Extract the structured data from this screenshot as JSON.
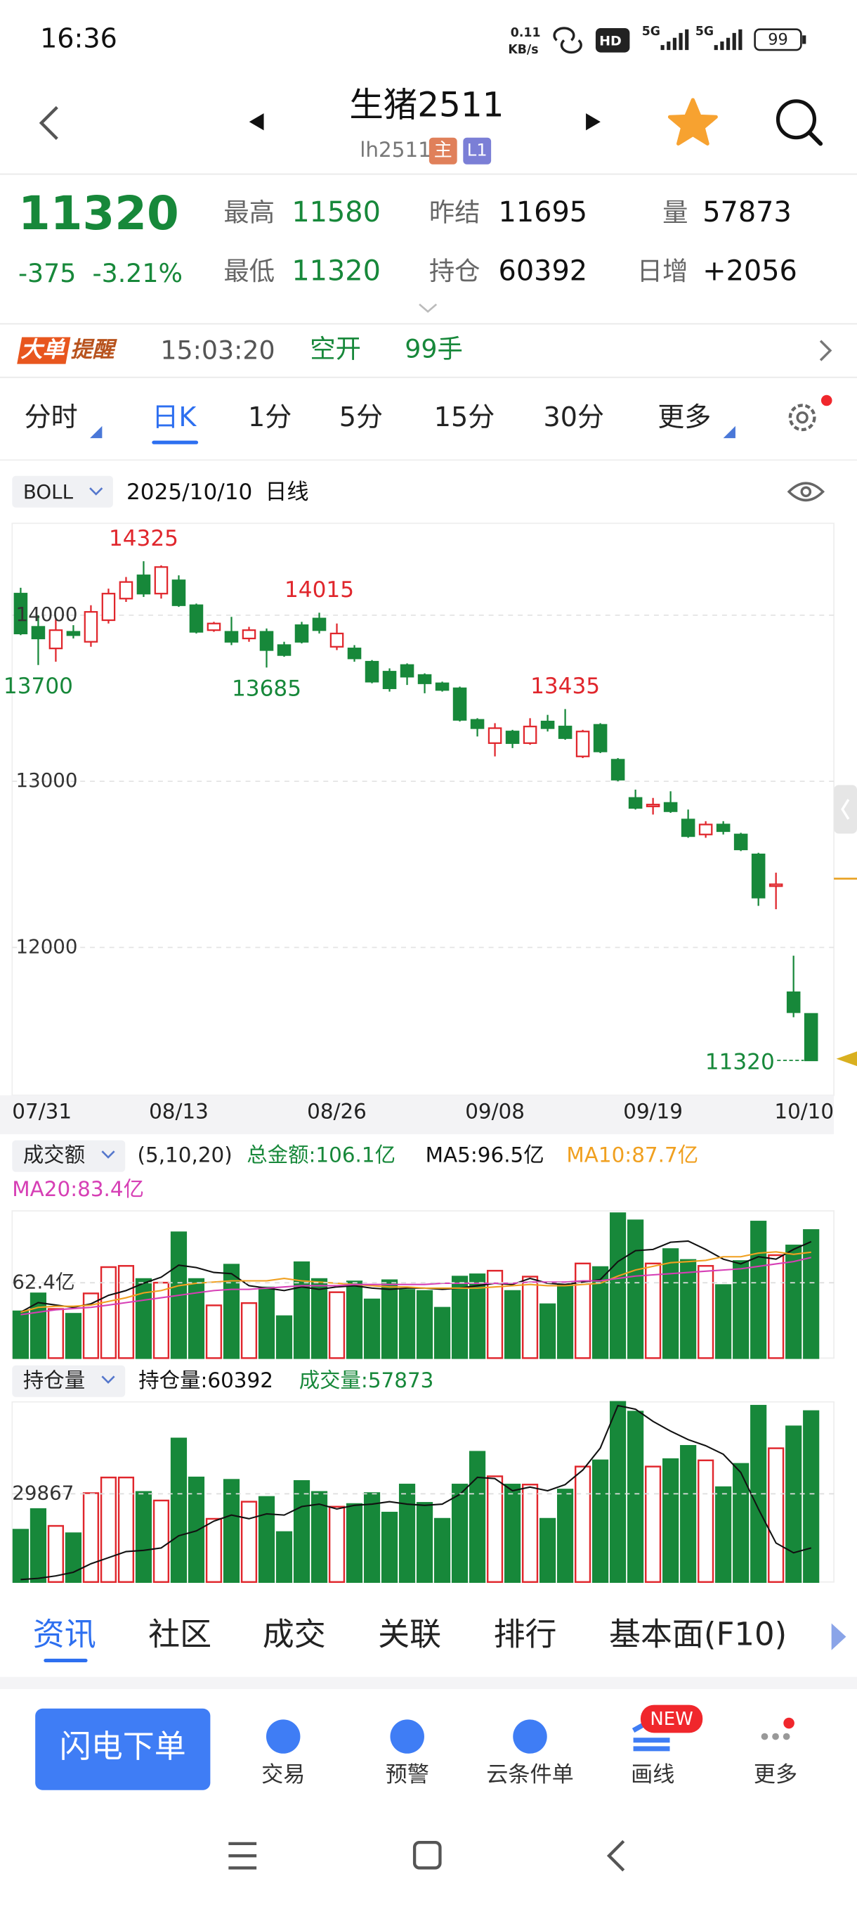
{
  "status": {
    "time": "16:36",
    "speed_value": "0.11",
    "speed_unit": "KB/s",
    "hd": "HD",
    "signals": [
      "5G",
      "5G"
    ],
    "battery": "99"
  },
  "header": {
    "title": "生猪2511",
    "code": "lh2511",
    "badges": [
      "主",
      "L1"
    ]
  },
  "quote": {
    "price": "11320",
    "change": "-375",
    "percent": "-3.21%",
    "fields": [
      {
        "label": "最高",
        "value": "11580"
      },
      {
        "label": "最低",
        "value": "11320"
      },
      {
        "label": "昨结",
        "value": "11695"
      },
      {
        "label": "持仓",
        "value": "60392"
      },
      {
        "label": "量",
        "value": "57873"
      },
      {
        "label": "日增",
        "value": "+2056"
      }
    ]
  },
  "alert": {
    "tag": "大单",
    "tag2": "提醒",
    "time": "15:03:20",
    "action": "空开",
    "quantity": "99手"
  },
  "tabs": {
    "items": [
      "分时",
      "日K",
      "1分",
      "5分",
      "15分",
      "30分",
      "更多"
    ],
    "active": 1
  },
  "chart_data": [
    {
      "type": "candlestick",
      "indicator": "BOLL",
      "date": "2025/10/10",
      "period": "日线",
      "categories": [
        "07/31",
        null,
        null,
        null,
        null,
        null,
        null,
        null,
        null,
        "08/13",
        null,
        null,
        null,
        null,
        null,
        null,
        null,
        null,
        "08/26",
        null,
        null,
        null,
        null,
        null,
        null,
        null,
        null,
        "09/08",
        null,
        null,
        null,
        null,
        null,
        null,
        null,
        null,
        "09/19",
        null,
        null,
        null,
        null,
        null,
        null,
        null,
        null,
        "10/10"
      ],
      "open": [
        14130,
        13930,
        13800,
        13900,
        13840,
        13970,
        14100,
        14240,
        14130,
        14210,
        14060,
        13910,
        13900,
        13860,
        13900,
        13820,
        13940,
        13980,
        13810,
        13800,
        13720,
        13660,
        13700,
        13640,
        13590,
        13560,
        13370,
        13230,
        13300,
        13230,
        13360,
        13330,
        13150,
        13340,
        13130,
        12900,
        12850,
        12870,
        12770,
        12680,
        12740,
        12680,
        12560,
        12370,
        11730,
        11600
      ],
      "high": [
        14165,
        14000,
        13980,
        13940,
        14060,
        14160,
        14230,
        14325,
        14300,
        14240,
        14070,
        13960,
        13990,
        13930,
        13920,
        13840,
        13960,
        14015,
        13950,
        13820,
        13730,
        13680,
        13710,
        13650,
        13600,
        13570,
        13380,
        13350,
        13310,
        13380,
        13400,
        13435,
        13310,
        13350,
        13140,
        12950,
        12900,
        12940,
        12830,
        12760,
        12760,
        12690,
        12570,
        12450,
        11950,
        11600
      ],
      "low": [
        13880,
        13700,
        13720,
        13860,
        13810,
        13950,
        14080,
        14110,
        14100,
        14050,
        13890,
        13900,
        13820,
        13840,
        13685,
        13750,
        13830,
        13890,
        13790,
        13720,
        13590,
        13540,
        13580,
        13530,
        13540,
        13360,
        13270,
        13150,
        13200,
        13220,
        13300,
        13250,
        13140,
        13170,
        13000,
        12830,
        12800,
        12810,
        12660,
        12660,
        12680,
        12580,
        12250,
        12230,
        11580,
        11320
      ],
      "close": [
        13890,
        13860,
        13910,
        13880,
        14020,
        14130,
        14200,
        14130,
        14290,
        14060,
        13900,
        13950,
        13840,
        13910,
        13790,
        13760,
        13840,
        13910,
        13890,
        13740,
        13600,
        13560,
        13630,
        13590,
        13550,
        13370,
        13320,
        13320,
        13230,
        13330,
        13320,
        13260,
        13300,
        13180,
        13010,
        12840,
        12860,
        12820,
        12670,
        12740,
        12700,
        12590,
        12300,
        12380,
        11610,
        11320
      ],
      "ylim": [
        11110,
        14553
      ],
      "yticks": [
        14000,
        13000,
        12000
      ],
      "grid": true,
      "up_color": "#e0262c",
      "down_color": "#17883a"
    },
    {
      "type": "bar",
      "title": "成交额",
      "params": "(5,10,20)",
      "name": "总金额:106.1亿",
      "color": "#17883a",
      "values": [
        38.7,
        53.6,
        40.7,
        36.7,
        53.6,
        75.4,
        76.4,
        65.5,
        62.5,
        104.2,
        65.5,
        43.7,
        77.4,
        45.6,
        58.5,
        34.7,
        79.4,
        65.5,
        54.6,
        63.5,
        48.6,
        64.5,
        56.5,
        55.6,
        41.7,
        67.5,
        69.4,
        72.4,
        55.6,
        67.5,
        44.6,
        60.5,
        78.4,
        75.4,
        120,
        114.1,
        78.4,
        90.3,
        81.3,
        76.4,
        60.5,
        80.4,
        113.1,
        85.3,
        93.3,
        106.1
      ],
      "series": [
        {
          "name": "MA5:96.5亿",
          "color": "#111111",
          "values": [
            38,
            46,
            44,
            42,
            45,
            52,
            56,
            62,
            67,
            77,
            75,
            71,
            70,
            60,
            58,
            56,
            59,
            57,
            59,
            60,
            58,
            57,
            58,
            58,
            57,
            58,
            60,
            62,
            61,
            66,
            62,
            61,
            63,
            65,
            80,
            89,
            90,
            96,
            97,
            90,
            82,
            78,
            84,
            82,
            90,
            96.5
          ]
        },
        {
          "name": "MA10:87.7亿",
          "color": "#f0a020",
          "values": [
            38,
            42,
            43,
            43,
            44,
            47,
            50,
            54,
            56,
            60,
            62,
            63,
            64,
            64,
            64,
            66,
            64,
            63,
            62,
            61,
            60,
            59,
            59,
            58,
            58,
            58,
            58,
            59,
            60,
            61,
            60,
            60,
            61,
            62,
            68,
            73,
            76,
            79,
            80,
            81,
            84,
            84,
            87,
            88,
            86,
            87.7
          ]
        },
        {
          "name": "MA20:83.4亿",
          "color": "#d63fb5",
          "values": [
            36,
            38,
            40,
            41,
            42,
            44,
            46,
            48,
            50,
            52,
            54,
            56,
            57,
            57,
            58,
            59,
            60,
            60,
            60,
            61,
            61,
            61,
            61,
            61,
            62,
            62,
            62,
            62,
            62,
            63,
            63,
            63,
            64,
            64,
            66,
            68,
            69,
            70,
            71,
            72,
            73,
            74,
            76,
            78,
            80,
            83.4
          ]
        }
      ],
      "ylim": [
        0,
        122
      ],
      "yticks": [
        {
          "value": 62.4,
          "label": "62.4亿"
        }
      ],
      "grid": true
    },
    {
      "type": "bar",
      "title": "持仓量",
      "name": "成交量:57873",
      "color": "#17883a",
      "values": [
        17700,
        24700,
        19000,
        16500,
        30100,
        35400,
        35400,
        30500,
        27600,
        48600,
        35400,
        21400,
        34600,
        27200,
        28800,
        16900,
        34200,
        30500,
        25500,
        26400,
        30100,
        23500,
        33000,
        26800,
        21400,
        33000,
        44100,
        35800,
        33000,
        33000,
        21400,
        31300,
        39100,
        41200,
        61000,
        57700,
        39100,
        41600,
        46100,
        41200,
        32100,
        40000,
        59700,
        45300,
        52700,
        57873
      ],
      "series": [
        {
          "name": "持仓量:60392",
          "color": "#111111",
          "axis": "y2",
          "values": [
            55390,
            55580,
            55960,
            56540,
            57890,
            58850,
            59820,
            60010,
            60390,
            62320,
            63090,
            64630,
            65590,
            65020,
            65790,
            65590,
            66940,
            67330,
            66560,
            67130,
            67330,
            67710,
            67330,
            67130,
            67330,
            68870,
            71560,
            71370,
            69450,
            70020,
            69450,
            70410,
            72720,
            76190,
            82930,
            82350,
            80420,
            78880,
            77530,
            76570,
            75220,
            72330,
            66560,
            61160,
            59620,
            60392
          ]
        }
      ],
      "ylim": [
        0,
        61000
      ],
      "yticks": [
        29867
      ],
      "y2lim": [
        55000,
        83500
      ],
      "grid": true
    }
  ],
  "bottom_tabs": {
    "items": [
      "资讯",
      "社区",
      "成交",
      "关联",
      "排行",
      "基本面(F10)"
    ],
    "active": 0
  },
  "toolbar": {
    "button": "闪电下单",
    "items": [
      "交易",
      "预警",
      "云条件单",
      "画线",
      "更多"
    ],
    "badge": "NEW"
  }
}
